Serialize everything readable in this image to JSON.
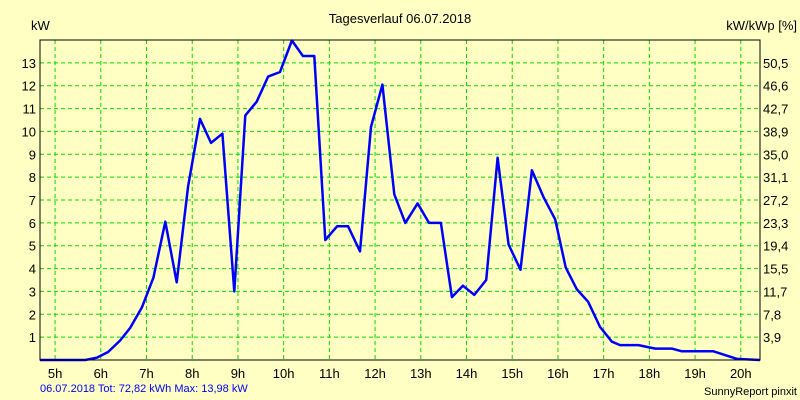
{
  "chart_data": {
    "type": "line",
    "title": "Tagesverlauf 06.07.2018",
    "ylabel": "kW",
    "ylabel_right": "kW/kWp [%]",
    "xlabel": "",
    "xlim": [
      4.67,
      20.42
    ],
    "ylim": [
      0,
      14
    ],
    "grid": true,
    "x_ticks": [
      5,
      6,
      7,
      8,
      9,
      10,
      11,
      12,
      13,
      14,
      15,
      16,
      17,
      18,
      19,
      20
    ],
    "x_tick_labels": [
      "5h",
      "6h",
      "7h",
      "8h",
      "9h",
      "10h",
      "11h",
      "12h",
      "13h",
      "14h",
      "15h",
      "16h",
      "17h",
      "18h",
      "19h",
      "20h"
    ],
    "y_ticks": [
      1,
      2,
      3,
      4,
      5,
      6,
      7,
      8,
      9,
      10,
      11,
      12,
      13
    ],
    "y_tick_labels": [
      "1",
      "2",
      "3",
      "4",
      "5",
      "6",
      "7",
      "8",
      "9",
      "10",
      "11",
      "12",
      "13"
    ],
    "y_right_tick_labels": [
      "3,9",
      "7,8",
      "11,7",
      "15,5",
      "19,4",
      "23,3",
      "27,2",
      "31,1",
      "35,0",
      "38,9",
      "42,7",
      "46,6",
      "50,5"
    ],
    "series": [
      {
        "name": "kW",
        "color": "#0000ff",
        "x": [
          4.67,
          5.66,
          5.91,
          6.16,
          6.42,
          6.64,
          6.9,
          7.15,
          7.41,
          7.66,
          7.91,
          8.17,
          8.41,
          8.66,
          8.92,
          9.16,
          9.41,
          9.66,
          9.92,
          10.18,
          10.42,
          10.67,
          10.91,
          11.17,
          11.41,
          11.67,
          11.91,
          12.16,
          12.42,
          12.66,
          12.93,
          13.18,
          13.44,
          13.68,
          13.92,
          14.17,
          14.43,
          14.68,
          14.92,
          15.18,
          15.43,
          15.69,
          15.94,
          16.17,
          16.41,
          16.66,
          16.92,
          17.18,
          17.36,
          17.76,
          18.13,
          18.49,
          18.71,
          19.4,
          19.92,
          20.42
        ],
        "y": [
          0,
          0,
          0.1,
          0.35,
          0.85,
          1.4,
          2.3,
          3.6,
          6.05,
          3.4,
          7.6,
          10.55,
          9.5,
          9.9,
          3.0,
          10.7,
          11.3,
          12.4,
          12.6,
          13.98,
          13.3,
          13.3,
          5.25,
          5.85,
          5.85,
          4.75,
          10.2,
          12.05,
          7.25,
          6.0,
          6.85,
          6.0,
          6.0,
          2.75,
          3.25,
          2.85,
          3.5,
          8.85,
          5.05,
          3.95,
          8.3,
          7.1,
          6.15,
          4.05,
          3.1,
          2.55,
          1.45,
          0.8,
          0.65,
          0.65,
          0.5,
          0.5,
          0.38,
          0.38,
          0.05,
          0
        ]
      }
    ],
    "footer_left": "06.07.2018 Tot: 72,82 kWh Max: 13,98 kW",
    "footer_right": "SunnyReport pinxit",
    "colors": {
      "background": "#ffffc4",
      "grid": "#00dd00",
      "line": "#0000ff",
      "footer": "#0000ff"
    }
  }
}
